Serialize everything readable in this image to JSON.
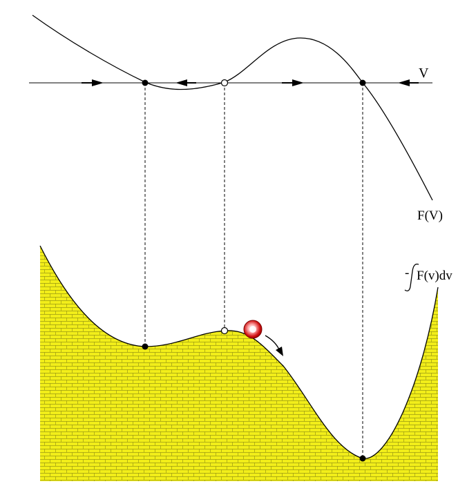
{
  "labels": {
    "axis": "V",
    "function": "F(V)",
    "potential_prefix": "-",
    "potential_integrand": "F(v)dv"
  },
  "colors": {
    "fill": "#f2ee1a",
    "brick_line": "#9c9a12",
    "ball_outer": "#d01010",
    "ball_inner": "#ffffff"
  },
  "icons": {
    "ball": "ball-icon",
    "arrow": "arrow-icon"
  }
}
